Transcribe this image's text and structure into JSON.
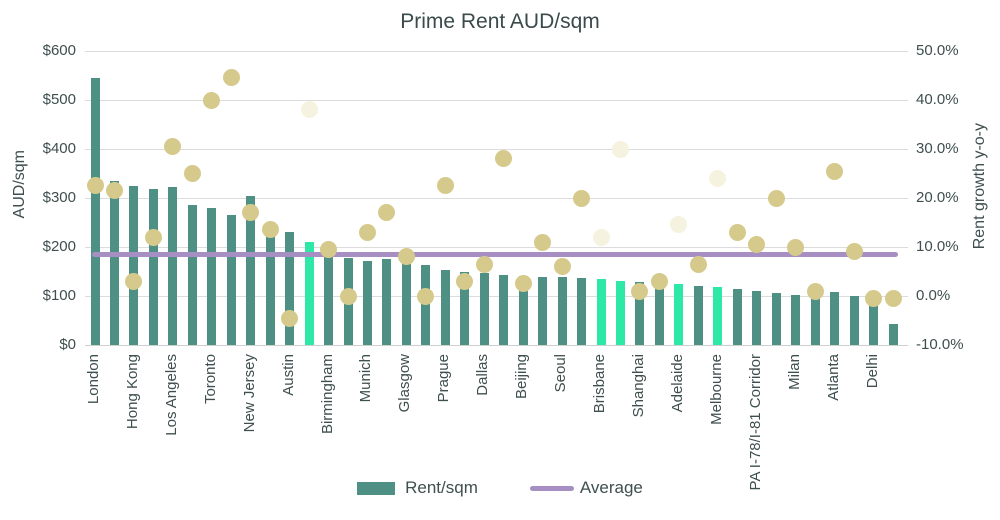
{
  "chart": {
    "title": "Prime Rent AUD/sqm",
    "left_axis": {
      "title": "AUD/sqm",
      "ticks": [
        "$600",
        "$500",
        "$400",
        "$300",
        "$200",
        "$100",
        "$0"
      ]
    },
    "right_axis": {
      "title": "Rent growth y-o-y",
      "ticks": [
        "50.0%",
        "40.0%",
        "30.0%",
        "20.0%",
        "10.0%",
        "0.0%",
        "-10.0%"
      ]
    },
    "legend": {
      "rent_label": "Rent/sqm",
      "average_label": "Average"
    },
    "colors": {
      "bar": "#4e9083",
      "bar_highlight": "#2ee8a7",
      "dot": "#d5ca8c",
      "dot_faded": "#f5f2df",
      "average_line": "#a78fc3",
      "grid": "#dcdcdc",
      "text": "#3f4e4e"
    }
  },
  "chart_data": {
    "type": "bar",
    "title": "Prime Rent AUD/sqm",
    "left_axis_label": "AUD/sqm",
    "right_axis_label": "Rent growth y-o-y",
    "left_axis_range": [
      0,
      600
    ],
    "right_axis_range": [
      -10,
      50
    ],
    "grid": true,
    "legend_position": "bottom",
    "average_rent_line": 184,
    "series_info": "Bars = Rent/sqm (left axis, AUD). Dots = Rent growth y-o-y (right axis, %). Only every second category is labelled on the x-axis; highlighted (bright green) bars have faded dots.",
    "points": [
      {
        "label": "London",
        "rent": 545,
        "growth": 22.5,
        "highlight": false,
        "dot_faded": false
      },
      {
        "label": "",
        "rent": 335,
        "growth": 21.5,
        "highlight": false,
        "dot_faded": false
      },
      {
        "label": "Hong Kong",
        "rent": 325,
        "growth": 3,
        "highlight": false,
        "dot_faded": false
      },
      {
        "label": "",
        "rent": 318,
        "growth": 12,
        "highlight": false,
        "dot_faded": false
      },
      {
        "label": "Los Angeles",
        "rent": 322,
        "growth": 30.5,
        "highlight": false,
        "dot_faded": false
      },
      {
        "label": "",
        "rent": 285,
        "growth": 25,
        "highlight": false,
        "dot_faded": false
      },
      {
        "label": "Toronto",
        "rent": 280,
        "growth": 40,
        "highlight": false,
        "dot_faded": false
      },
      {
        "label": "",
        "rent": 265,
        "growth": 44.5,
        "highlight": false,
        "dot_faded": false
      },
      {
        "label": "New Jersey",
        "rent": 305,
        "growth": 17,
        "highlight": false,
        "dot_faded": false
      },
      {
        "label": "",
        "rent": 238,
        "growth": 13.5,
        "highlight": false,
        "dot_faded": false
      },
      {
        "label": "Austin",
        "rent": 230,
        "growth": -4.5,
        "highlight": false,
        "dot_faded": false
      },
      {
        "label": "",
        "rent": 211,
        "growth": 38,
        "highlight": true,
        "dot_faded": true
      },
      {
        "label": "Birmingham",
        "rent": 186,
        "growth": 9.5,
        "highlight": false,
        "dot_faded": false
      },
      {
        "label": "",
        "rent": 178,
        "growth": 0,
        "highlight": false,
        "dot_faded": false
      },
      {
        "label": "Munich",
        "rent": 171,
        "growth": 13,
        "highlight": false,
        "dot_faded": false
      },
      {
        "label": "",
        "rent": 175,
        "growth": 17,
        "highlight": false,
        "dot_faded": false
      },
      {
        "label": "Glasgow",
        "rent": 180,
        "growth": 8,
        "highlight": false,
        "dot_faded": false
      },
      {
        "label": "",
        "rent": 164,
        "growth": 0,
        "highlight": false,
        "dot_faded": false
      },
      {
        "label": "Prague",
        "rent": 153,
        "growth": 22.5,
        "highlight": false,
        "dot_faded": false
      },
      {
        "label": "",
        "rent": 149,
        "growth": 3,
        "highlight": false,
        "dot_faded": false
      },
      {
        "label": "Dallas",
        "rent": 146,
        "growth": 6.5,
        "highlight": false,
        "dot_faded": false
      },
      {
        "label": "",
        "rent": 143,
        "growth": 28,
        "highlight": false,
        "dot_faded": false
      },
      {
        "label": "Beijing",
        "rent": 141,
        "growth": 2.5,
        "highlight": false,
        "dot_faded": false
      },
      {
        "label": "",
        "rent": 139,
        "growth": 11,
        "highlight": false,
        "dot_faded": false
      },
      {
        "label": "Seoul",
        "rent": 138,
        "growth": 6,
        "highlight": false,
        "dot_faded": false
      },
      {
        "label": "",
        "rent": 136,
        "growth": 20,
        "highlight": false,
        "dot_faded": false
      },
      {
        "label": "Brisbane",
        "rent": 134,
        "growth": 12,
        "highlight": true,
        "dot_faded": true
      },
      {
        "label": "",
        "rent": 131,
        "growth": 30,
        "highlight": true,
        "dot_faded": true
      },
      {
        "label": "Shanghai",
        "rent": 128,
        "growth": 1,
        "highlight": false,
        "dot_faded": false
      },
      {
        "label": "",
        "rent": 126,
        "growth": 3,
        "highlight": false,
        "dot_faded": false
      },
      {
        "label": "Adelaide",
        "rent": 124,
        "growth": 14.5,
        "highlight": true,
        "dot_faded": true
      },
      {
        "label": "",
        "rent": 121,
        "growth": 6.5,
        "highlight": false,
        "dot_faded": false
      },
      {
        "label": "Melbourne",
        "rent": 118,
        "growth": 24,
        "highlight": true,
        "dot_faded": true
      },
      {
        "label": "",
        "rent": 114,
        "growth": 13,
        "highlight": false,
        "dot_faded": false
      },
      {
        "label": "PA I-78/I-81 Corridor",
        "rent": 111,
        "growth": 10.5,
        "highlight": false,
        "dot_faded": false
      },
      {
        "label": "",
        "rent": 106,
        "growth": 20,
        "highlight": false,
        "dot_faded": false
      },
      {
        "label": "Milan",
        "rent": 103,
        "growth": 10,
        "highlight": false,
        "dot_faded": false
      },
      {
        "label": "",
        "rent": 101,
        "growth": 1,
        "highlight": false,
        "dot_faded": false
      },
      {
        "label": "Atlanta",
        "rent": 108,
        "growth": 25.5,
        "highlight": false,
        "dot_faded": false
      },
      {
        "label": "",
        "rent": 100,
        "growth": 9,
        "highlight": false,
        "dot_faded": false
      },
      {
        "label": "Delhi",
        "rent": 85,
        "growth": -0.5,
        "highlight": false,
        "dot_faded": false
      },
      {
        "label": "",
        "rent": 42,
        "growth": -0.5,
        "highlight": false,
        "dot_faded": false
      }
    ]
  }
}
